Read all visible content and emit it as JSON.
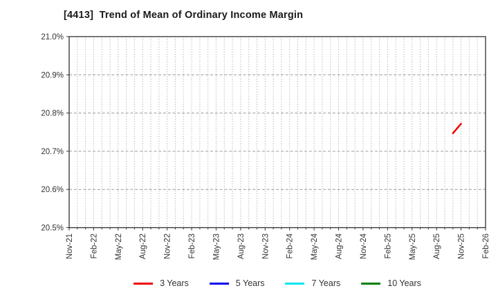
{
  "header": {
    "title": "[4413]  Trend of Mean of Ordinary Income Margin"
  },
  "chart_data": {
    "type": "line",
    "title": "[4413]  Trend of Mean of Ordinary Income Margin",
    "x_axis": {
      "tick_labels": [
        "Nov-21",
        "Feb-22",
        "May-22",
        "Aug-22",
        "Nov-22",
        "Feb-23",
        "May-23",
        "Aug-23",
        "Nov-23",
        "Feb-24",
        "May-24",
        "Aug-24",
        "Nov-24",
        "Feb-25",
        "May-25",
        "Aug-25",
        "Nov-25",
        "Feb-26"
      ],
      "tick_interval_months": 3,
      "months_span": 51,
      "minor_grid": "monthly dotted vertical lines"
    },
    "y_axis": {
      "min": 20.5,
      "max": 21.0,
      "tick_step": 0.1,
      "tick_labels": [
        "20.5%",
        "20.6%",
        "20.7%",
        "20.8%",
        "20.9%",
        "21.0%"
      ],
      "unit": "%",
      "grid": "dashed horizontal lines"
    },
    "series": [
      {
        "name": "3 Years",
        "color": "#ee0000",
        "points": [
          {
            "x_label": "Oct-25",
            "month_index": 47,
            "value": 20.747
          },
          {
            "x_label": "Nov-25",
            "month_index": 48,
            "value": 20.772
          }
        ]
      },
      {
        "name": "5 Years",
        "color": "#0000ee",
        "points": []
      },
      {
        "name": "7 Years",
        "color": "#00e5ee",
        "points": []
      },
      {
        "name": "10 Years",
        "color": "#008000",
        "points": []
      }
    ],
    "legend": {
      "position": "bottom-center",
      "entries": [
        "3 Years",
        "5 Years",
        "7 Years",
        "10 Years"
      ]
    }
  },
  "colors": {
    "background": "#ffffff",
    "axis": "#2e2e2e",
    "grid": "#9a9a9a",
    "title_text": "#1a1a1a",
    "tick_text": "#333333"
  }
}
